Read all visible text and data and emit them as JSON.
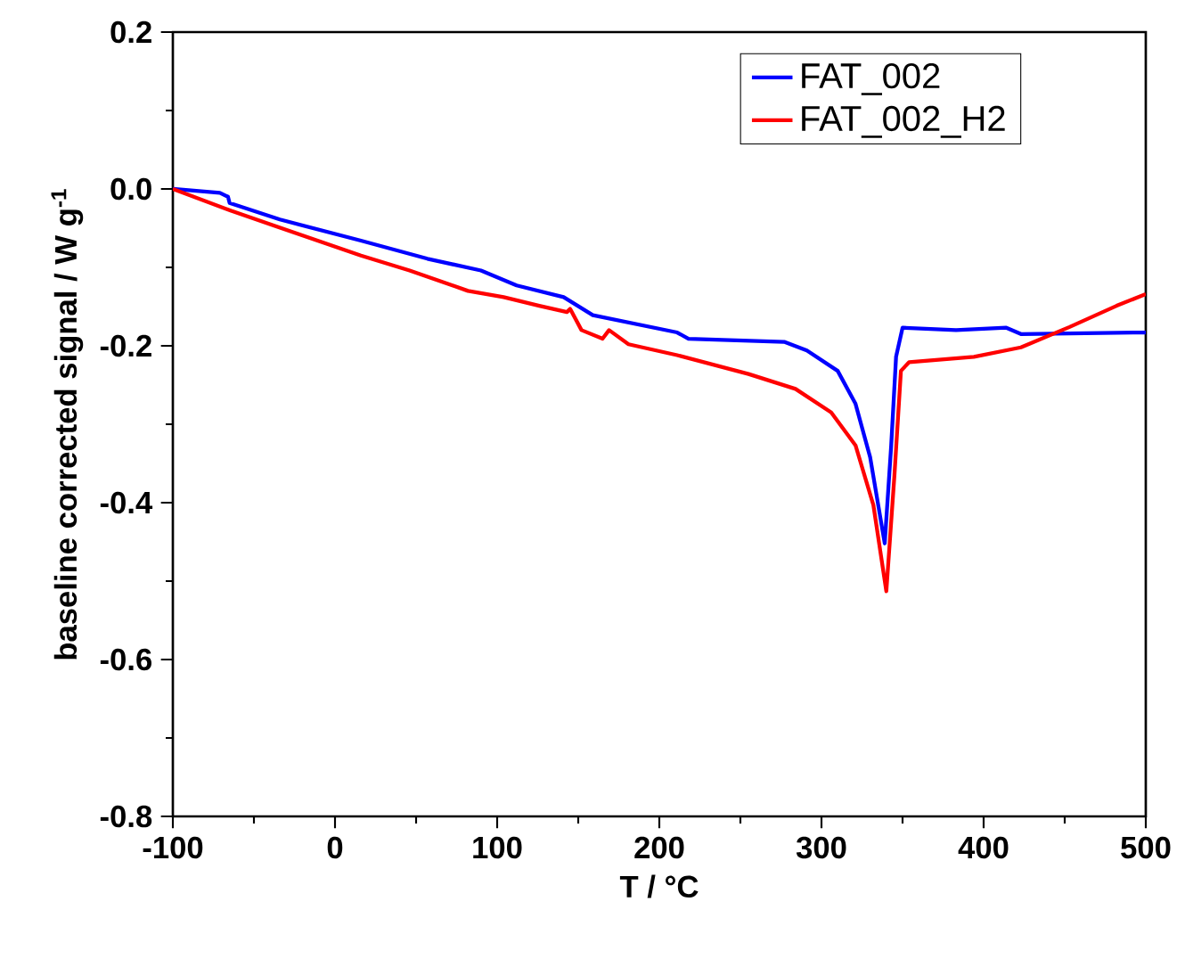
{
  "chart_data": {
    "type": "line",
    "xlabel": "T / °C",
    "ylabel": "baseline corrected signal / W g$^{-1}$",
    "xlim": [
      -100,
      500
    ],
    "xticks": [
      -100,
      0,
      100,
      200,
      300,
      400,
      500
    ],
    "ylim": [
      -0.8,
      0.2
    ],
    "yticks": [
      {
        "value": -0.8,
        "label": "-0.8"
      },
      {
        "value": -0.6,
        "label": "-0.6"
      },
      {
        "value": -0.4,
        "label": "-0.4"
      },
      {
        "value": -0.2,
        "label": "-0.2"
      },
      {
        "value": 0,
        "label": "0.0"
      },
      {
        "value": 0.2,
        "label": "0.2"
      }
    ],
    "legend": "top right",
    "grid": false,
    "marker": "none",
    "line_style": "solid",
    "series": [
      {
        "name": "FAT_002",
        "color": "#0000ff",
        "x": [
          -100,
          -71,
          -66,
          -65,
          -34,
          16,
          57,
          90,
          112,
          141,
          159,
          185,
          211,
          218,
          277,
          291,
          310,
          321,
          330,
          339,
          343,
          346,
          350,
          383,
          414,
          423,
          500
        ],
        "values": [
          0.0,
          -0.005,
          -0.01,
          -0.018,
          -0.039,
          -0.066,
          -0.089,
          -0.104,
          -0.123,
          -0.138,
          -0.161,
          -0.172,
          -0.183,
          -0.191,
          -0.195,
          -0.206,
          -0.232,
          -0.274,
          -0.342,
          -0.452,
          -0.327,
          -0.214,
          -0.177,
          -0.18,
          -0.177,
          -0.185,
          -0.183
        ]
      },
      {
        "name": "FAT_002_H2",
        "color": "#ff0000",
        "x": [
          -100,
          -64,
          16,
          46,
          82,
          104,
          126,
          143,
          145,
          152,
          165,
          169,
          181,
          211,
          255,
          284,
          306,
          321,
          332,
          340,
          345,
          349,
          354,
          394,
          423,
          453,
          482,
          500
        ],
        "values": [
          0.0,
          -0.028,
          -0.085,
          -0.104,
          -0.13,
          -0.138,
          -0.149,
          -0.157,
          -0.153,
          -0.18,
          -0.191,
          -0.18,
          -0.198,
          -0.212,
          -0.236,
          -0.255,
          -0.285,
          -0.327,
          -0.403,
          -0.513,
          -0.365,
          -0.232,
          -0.221,
          -0.214,
          -0.202,
          -0.176,
          -0.149,
          -0.134
        ]
      }
    ]
  }
}
